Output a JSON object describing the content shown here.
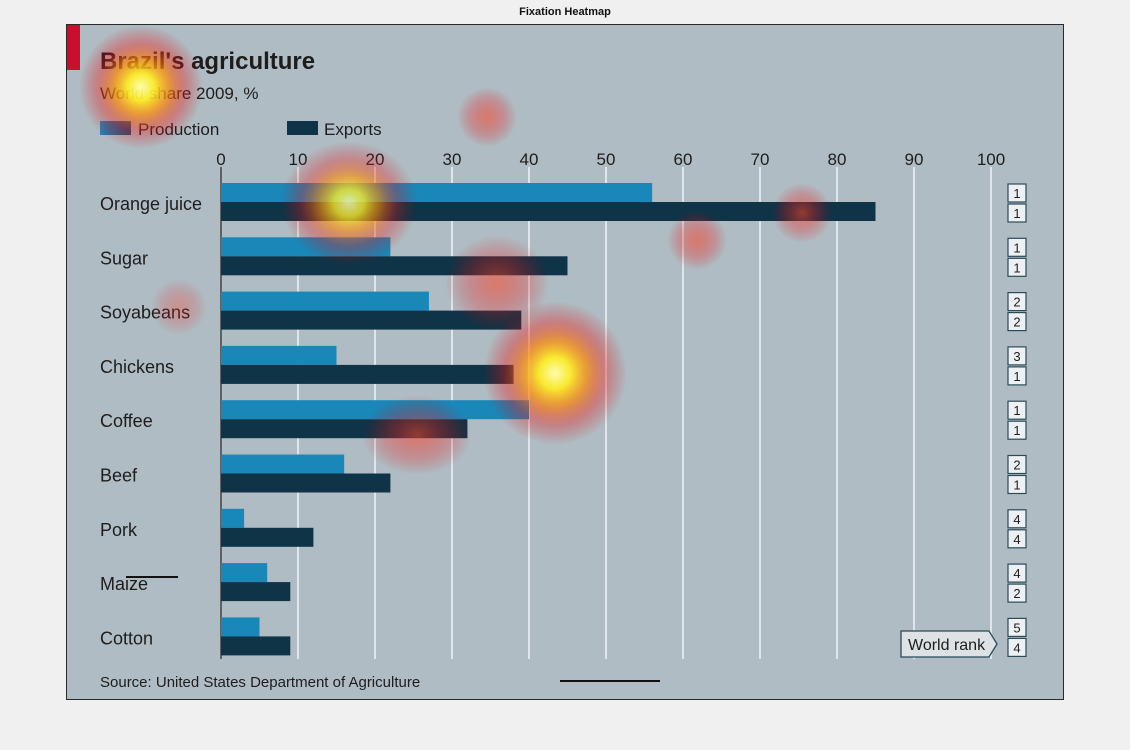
{
  "figure_title": "Fixation Heatmap",
  "chart_data": {
    "type": "bar",
    "title": "Brazil's agriculture",
    "subtitle": "World share 2009, %",
    "categories": [
      "Orange juice",
      "Sugar",
      "Soyabeans",
      "Chickens",
      "Coffee",
      "Beef",
      "Pork",
      "Maize",
      "Cotton"
    ],
    "series": [
      {
        "name": "Production",
        "values": [
          56,
          22,
          27,
          15,
          40,
          16,
          3,
          6,
          5
        ],
        "color": "#1a87b9"
      },
      {
        "name": "Exports",
        "values": [
          85,
          45,
          39,
          38,
          32,
          22,
          12,
          9,
          9
        ],
        "color": "#0f3347"
      }
    ],
    "x_ticks": [
      "0",
      "10",
      "20",
      "30",
      "40",
      "50",
      "60",
      "70",
      "80",
      "90",
      "100"
    ],
    "xlim": [
      0,
      100
    ],
    "orientation": "horizontal",
    "grid": true,
    "legend_position": "top-left",
    "world_rank": {
      "label": "World rank",
      "production": [
        "1",
        "1",
        "2",
        "3",
        "1",
        "2",
        "4",
        "4",
        "5"
      ],
      "exports": [
        "1",
        "1",
        "2",
        "1",
        "1",
        "1",
        "4",
        "2",
        "4"
      ]
    },
    "source": "Source: United States Department of Agriculture",
    "accent_color": "#c8102e",
    "overlay": "fixation heatmap"
  }
}
